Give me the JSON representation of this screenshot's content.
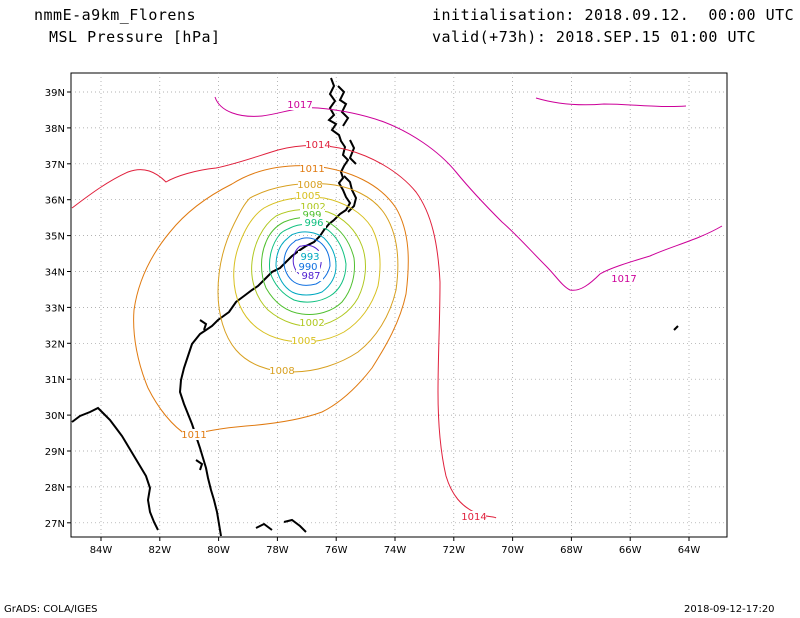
{
  "header": {
    "model": "nmmE-a9km_Florens",
    "field": "MSL Pressure [hPa]",
    "init": "initialisation: 2018.09.12.  00:00 UTC",
    "valid": "valid(+73h): 2018.SEP.15 01:00 UTC"
  },
  "footer": {
    "credit": "GrADS: COLA/IGES",
    "timestamp": "2018-09-12-17:20"
  },
  "map": {
    "lon_labels": [
      "84W",
      "82W",
      "80W",
      "78W",
      "76W",
      "74W",
      "72W",
      "70W",
      "68W",
      "66W",
      "64W"
    ],
    "lat_labels": [
      "39N",
      "38N",
      "37N",
      "36N",
      "35N",
      "34N",
      "33N",
      "32N",
      "31N",
      "30N",
      "29N",
      "28N",
      "27N"
    ],
    "contour_labels": [
      "1017",
      "1014",
      "1011",
      "1008",
      "1005",
      "1002",
      "999",
      "996",
      "993",
      "990",
      "987",
      "1017",
      "1014",
      "1011",
      "1008",
      "1005",
      "1002",
      "993",
      "990",
      "987",
      "1011",
      "1014"
    ],
    "colors": {
      "1017": "#cc0099",
      "1014": "#e0203c",
      "1011": "#e07a10",
      "1008": "#d8a020",
      "1005": "#d8c020",
      "1002": "#b0c820",
      "999": "#50c030",
      "996": "#10c080",
      "993": "#00a8c0",
      "990": "#1070e0",
      "987": "#5020d0",
      "984": "#9010c0"
    }
  }
}
